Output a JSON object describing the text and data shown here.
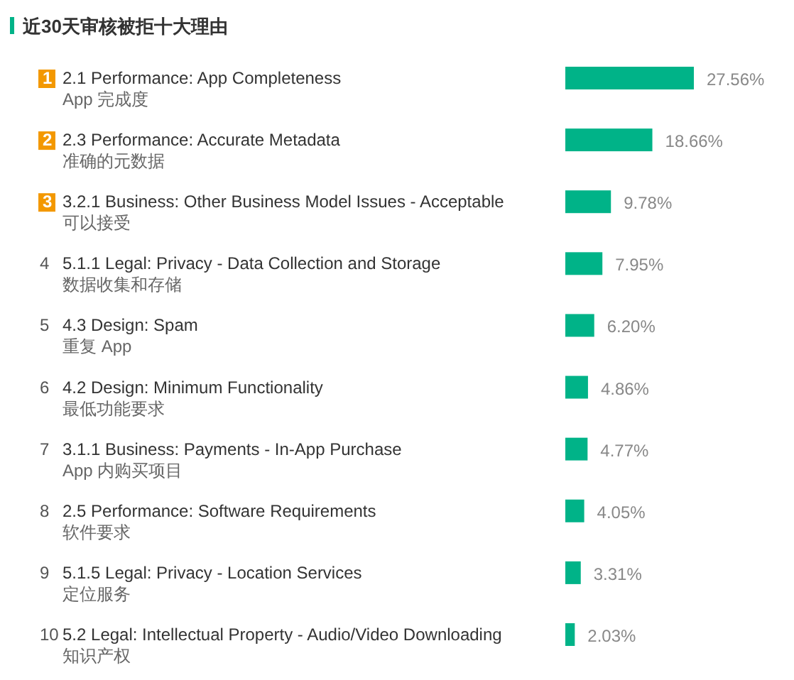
{
  "chart_data": {
    "type": "bar",
    "orientation": "horizontal",
    "title": "近30天审核被拒十大理由",
    "categories": [
      "1\n2.1 Performance: App Completeness\nApp 完成度",
      "2\n2.3 Performance: Accurate Metadata\n准确的元数据",
      "3\n3.2.1 Business: Other Business Model Issues - Acceptable\n可以接受",
      "4\n5.1.1 Legal: Privacy - Data Collection and Storage\n数据收集和存储",
      "5\n4.3 Design: Spam\n重复 App",
      "6\n4.2 Design: Minimum Functionality\n最低功能要求",
      "7\n3.1.1 Business: Payments - In-App Purchase\nApp 内购买项目",
      "8\n2.5 Performance: Software Requirements\n软件要求",
      "9\n5.1.5 Legal: Privacy - Location Services\n定位服务",
      "10\n5.2 Legal: Intellectual Property - Audio/Video Downloading\n知识产权"
    ],
    "values": [
      27.56,
      18.66,
      9.78,
      7.95,
      6.2,
      4.86,
      4.77,
      4.05,
      3.31,
      2.03
    ],
    "value_labels": [
      "27.56%",
      "18.66%",
      "9.78%",
      "7.95%",
      "6.20%",
      "4.86%",
      "4.77%",
      "4.05%",
      "3.31%",
      "2.03%"
    ],
    "color": "#00b388"
  }
}
